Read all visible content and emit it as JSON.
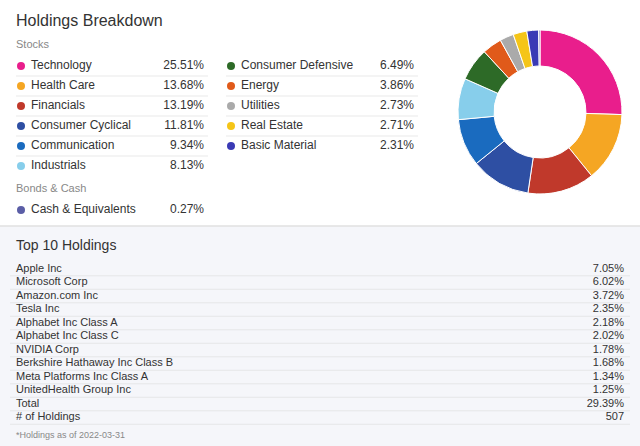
{
  "chart_data": [
    {
      "type": "pie",
      "title": "Holdings Breakdown",
      "series": [
        {
          "name": "Stocks",
          "categories": [
            "Technology",
            "Health Care",
            "Financials",
            "Consumer Cyclical",
            "Communication",
            "Industrials",
            "Consumer Defensive",
            "Energy",
            "Utilities",
            "Real Estate",
            "Basic Material"
          ],
          "values": [
            25.51,
            13.68,
            13.19,
            11.81,
            9.34,
            8.13,
            6.49,
            3.86,
            2.73,
            2.71,
            2.31
          ],
          "value_labels": [
            "25.51%",
            "13.68%",
            "13.19%",
            "11.81%",
            "9.34%",
            "8.13%",
            "6.49%",
            "3.86%",
            "2.73%",
            "2.71%",
            "2.31%"
          ],
          "colors": [
            "#e91e8c",
            "#f5a623",
            "#c0392b",
            "#2e4fa3",
            "#1a6bbf",
            "#87ceeb",
            "#2d6a27",
            "#e05a1a",
            "#aaaaaa",
            "#f5c518",
            "#3a3ab5"
          ]
        },
        {
          "name": "Bonds & Cash",
          "categories": [
            "Cash & Equivalents"
          ],
          "values": [
            0.27
          ],
          "value_labels": [
            "0.27%"
          ],
          "colors": [
            "#5b5ea6"
          ]
        }
      ]
    },
    {
      "type": "table",
      "title": "Top 10 Holdings",
      "categories": [
        "Apple Inc",
        "Microsoft Corp",
        "Amazon.com Inc",
        "Tesla Inc",
        "Alphabet Inc Class A",
        "Alphabet Inc Class C",
        "NVIDIA Corp",
        "Berkshire Hathaway Inc Class B",
        "Meta Platforms Inc Class A",
        "UnitedHealth Group Inc",
        "Total",
        "# of Holdings"
      ],
      "values": [
        7.05,
        6.02,
        3.72,
        2.35,
        2.18,
        2.02,
        1.78,
        1.68,
        1.34,
        1.25,
        29.39,
        507
      ],
      "value_labels": [
        "7.05%",
        "6.02%",
        "3.72%",
        "2.35%",
        "2.18%",
        "2.02%",
        "1.78%",
        "1.68%",
        "1.34%",
        "1.25%",
        "29.39%",
        "507"
      ],
      "annotations": [
        "*Holdings as of 2022-03-31"
      ]
    }
  ]
}
